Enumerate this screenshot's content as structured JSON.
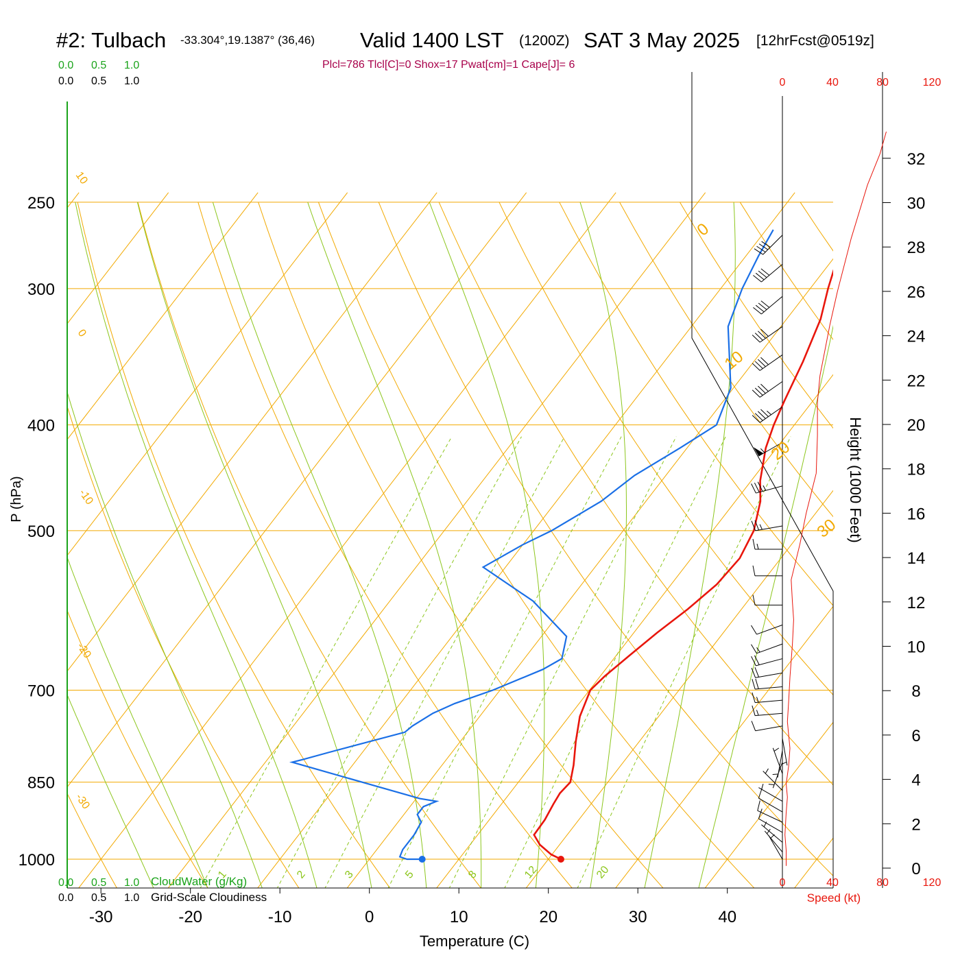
{
  "header": {
    "site": "#2: Tulbach",
    "coords": "-33.304°,19.1387° (36,46)",
    "valid": "Valid 1400 LST",
    "zulu": "(1200Z)",
    "date": "SAT 3 May 2025",
    "forecast": "[12hrFcst@0519z]",
    "indices": "Plcl=786 Tlcl[C]=0 Shox=17 Pwat[cm]=1 Cape[J]= 6"
  },
  "colors": {
    "temperature": "#e8160c",
    "dewpoint": "#1a6fe6",
    "isotherm": "#f2a900",
    "moist_adiabat": "#8cc61c",
    "mixing_ratio": "#8cc61c",
    "cloudwater": "#1aa31a",
    "wind_speed": "#e8160c",
    "indices": "#a8004a"
  },
  "top_scales": {
    "cloudwater": [
      "0.0",
      "0.5",
      "1.0"
    ],
    "cloudiness": [
      "0.0",
      "0.5",
      "1.0"
    ]
  },
  "bottom_scales": {
    "cloudwater": [
      "0.0",
      "0.5",
      "1.0"
    ],
    "cloudwater_label": "CloudWater (g/Kg)",
    "cloudiness": [
      "0.0",
      "0.5",
      "1.0"
    ],
    "cloudiness_label": "Grid-Scale Cloudiness"
  },
  "speed_scale": {
    "ticks": [
      "0",
      "40",
      "80",
      "120"
    ],
    "label": "Speed (kt)"
  },
  "dry_adiabat_labels": [
    "10",
    "0",
    "-10",
    "-20",
    "-30"
  ],
  "right_adiabat_labels": [
    "0",
    "10",
    "20",
    "30"
  ],
  "mixing_ratio_labels": [
    "1",
    "2",
    "3",
    "5",
    "8",
    "12",
    "20"
  ],
  "chart_data": {
    "type": "line",
    "title": "#2: Tulbach",
    "xlabel": "Temperature (C)",
    "ylabel": "P (hPa)",
    "y2label": "Height (1000 Feet)",
    "xlim": [
      -35,
      45
    ],
    "x_ticks": [
      -30,
      -20,
      -10,
      0,
      10,
      20,
      30,
      40
    ],
    "y_scale": "log",
    "y_ticks": [
      250,
      300,
      400,
      500,
      700,
      850,
      1000
    ],
    "height_ticks": [
      0,
      2,
      4,
      6,
      8,
      10,
      12,
      14,
      16,
      18,
      20,
      22,
      24,
      26,
      28,
      30,
      32
    ],
    "series": [
      {
        "kind": "temperature",
        "points": [
          [
            21.4,
            1000
          ],
          [
            19.9,
            990
          ],
          [
            17.8,
            970
          ],
          [
            16.3,
            950
          ],
          [
            16.2,
            920
          ],
          [
            15.8,
            890
          ],
          [
            15.6,
            870
          ],
          [
            15.8,
            850
          ],
          [
            14.7,
            820
          ],
          [
            12.9,
            780
          ],
          [
            11.2,
            740
          ],
          [
            10.1,
            700
          ],
          [
            10.5,
            680
          ],
          [
            11.5,
            650
          ],
          [
            12.6,
            620
          ],
          [
            14.0,
            590
          ],
          [
            15.1,
            560
          ],
          [
            15.4,
            530
          ],
          [
            14.6,
            500
          ],
          [
            12.8,
            470
          ],
          [
            11.0,
            450
          ],
          [
            8.8,
            420
          ],
          [
            7.7,
            400
          ],
          [
            6.8,
            380
          ],
          [
            5.5,
            350
          ],
          [
            3.8,
            320
          ],
          [
            2.0,
            300
          ],
          [
            0.3,
            280
          ],
          [
            -0.9,
            265
          ]
        ]
      },
      {
        "kind": "dewpoint",
        "points": [
          [
            5.9,
            1000
          ],
          [
            4.2,
            1000
          ],
          [
            3.2,
            995
          ],
          [
            2.9,
            980
          ],
          [
            2.9,
            950
          ],
          [
            2.6,
            925
          ],
          [
            1.5,
            910
          ],
          [
            1.5,
            895
          ],
          [
            2.5,
            885
          ],
          [
            0.4,
            880
          ],
          [
            -17.0,
            815
          ],
          [
            -16.0,
            810
          ],
          [
            -13.7,
            798
          ],
          [
            -7.0,
            765
          ],
          [
            -6.7,
            755
          ],
          [
            -5.5,
            735
          ],
          [
            -3.9,
            720
          ],
          [
            -0.8,
            700
          ],
          [
            3.0,
            670
          ],
          [
            4.2,
            655
          ],
          [
            2.8,
            625
          ],
          [
            -4.0,
            580
          ],
          [
            -12.5,
            540
          ],
          [
            -10.0,
            515
          ],
          [
            -8.0,
            500
          ],
          [
            -5.0,
            470
          ],
          [
            -3.5,
            445
          ],
          [
            -0.8,
            420
          ],
          [
            1.3,
            400
          ],
          [
            -0.3,
            370
          ],
          [
            -5.9,
            325
          ],
          [
            -7.6,
            300
          ],
          [
            -8.6,
            280
          ],
          [
            -9.2,
            265
          ]
        ]
      },
      {
        "kind": "height_vs_speed",
        "units": [
          "kt",
          "1000 ft"
        ],
        "points": [
          [
            3,
            0.1
          ],
          [
            3,
            0.8
          ],
          [
            2,
            1.5
          ],
          [
            3,
            2.5
          ],
          [
            4,
            3.2
          ],
          [
            3,
            3.8
          ],
          [
            5,
            4.6
          ],
          [
            6,
            5.4
          ],
          [
            4,
            6.6
          ],
          [
            5,
            7.5
          ],
          [
            6,
            8.6
          ],
          [
            8,
            10.1
          ],
          [
            9,
            11.2
          ],
          [
            8,
            12.0
          ],
          [
            7,
            13.0
          ],
          [
            14,
            14.6
          ],
          [
            19,
            16.0
          ],
          [
            27,
            17.8
          ],
          [
            28,
            19.5
          ],
          [
            28,
            21.0
          ],
          [
            30,
            22.2
          ],
          [
            38,
            24.5
          ],
          [
            44,
            26.0
          ],
          [
            55,
            28.4
          ],
          [
            68,
            30.8
          ],
          [
            78,
            32.2
          ],
          [
            83,
            33.2
          ]
        ]
      }
    ],
    "wind_barbs": [
      {
        "p": 1000,
        "dir": 330,
        "kt": 4
      },
      {
        "p": 985,
        "dir": 320,
        "kt": 5
      },
      {
        "p": 965,
        "dir": 310,
        "kt": 7
      },
      {
        "p": 945,
        "dir": 300,
        "kt": 8
      },
      {
        "p": 925,
        "dir": 295,
        "kt": 9
      },
      {
        "p": 905,
        "dir": 300,
        "kt": 8
      },
      {
        "p": 885,
        "dir": 300,
        "kt": 6
      },
      {
        "p": 865,
        "dir": 315,
        "kt": 5
      },
      {
        "p": 835,
        "dir": 340,
        "kt": 5
      },
      {
        "p": 815,
        "dir": 200,
        "kt": 5
      },
      {
        "p": 795,
        "dir": 190,
        "kt": 6
      },
      {
        "p": 775,
        "dir": 170,
        "kt": 5
      },
      {
        "p": 755,
        "dir": 260,
        "kt": 12
      },
      {
        "p": 735,
        "dir": 265,
        "kt": 15
      },
      {
        "p": 715,
        "dir": 265,
        "kt": 17
      },
      {
        "p": 695,
        "dir": 265,
        "kt": 19
      },
      {
        "p": 675,
        "dir": 260,
        "kt": 19
      },
      {
        "p": 655,
        "dir": 255,
        "kt": 18
      },
      {
        "p": 635,
        "dir": 250,
        "kt": 15
      },
      {
        "p": 610,
        "dir": 250,
        "kt": 12
      },
      {
        "p": 585,
        "dir": 270,
        "kt": 10
      },
      {
        "p": 550,
        "dir": 270,
        "kt": 12
      },
      {
        "p": 520,
        "dir": 270,
        "kt": 15
      },
      {
        "p": 495,
        "dir": 260,
        "kt": 25
      },
      {
        "p": 455,
        "dir": 255,
        "kt": 35
      },
      {
        "p": 415,
        "dir": 240,
        "kt": 55
      },
      {
        "p": 385,
        "dir": 235,
        "kt": 45
      },
      {
        "p": 365,
        "dir": 235,
        "kt": 40
      },
      {
        "p": 345,
        "dir": 235,
        "kt": 40
      },
      {
        "p": 325,
        "dir": 235,
        "kt": 40
      },
      {
        "p": 305,
        "dir": 230,
        "kt": 40
      },
      {
        "p": 285,
        "dir": 230,
        "kt": 40
      },
      {
        "p": 268,
        "dir": 225,
        "kt": 40
      }
    ]
  }
}
